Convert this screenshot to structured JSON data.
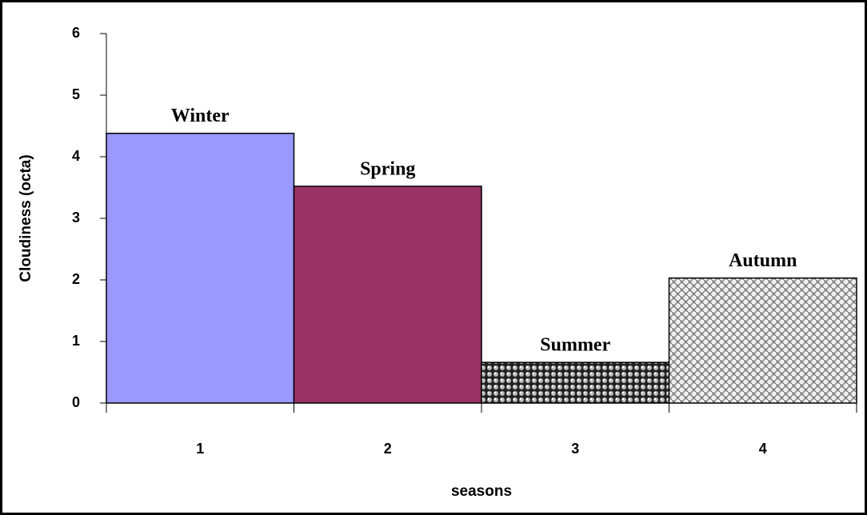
{
  "chart_data": {
    "type": "bar",
    "categories": [
      "1",
      "2",
      "3",
      "4"
    ],
    "values": [
      4.38,
      3.52,
      0.66,
      2.03
    ],
    "bar_labels": [
      "Winter",
      "Spring",
      "Summer",
      "Autumn"
    ],
    "colors": [
      "#9999ff",
      "#993366",
      "#333333",
      "#999999"
    ],
    "fills": [
      "solid",
      "solid",
      "dots",
      "weave"
    ],
    "xlabel": "seasons",
    "ylabel": "Cloudiness (octa)",
    "ylim": [
      0,
      6
    ],
    "yticks": [
      0,
      1,
      2,
      3,
      4,
      5,
      6
    ],
    "grid": false
  }
}
